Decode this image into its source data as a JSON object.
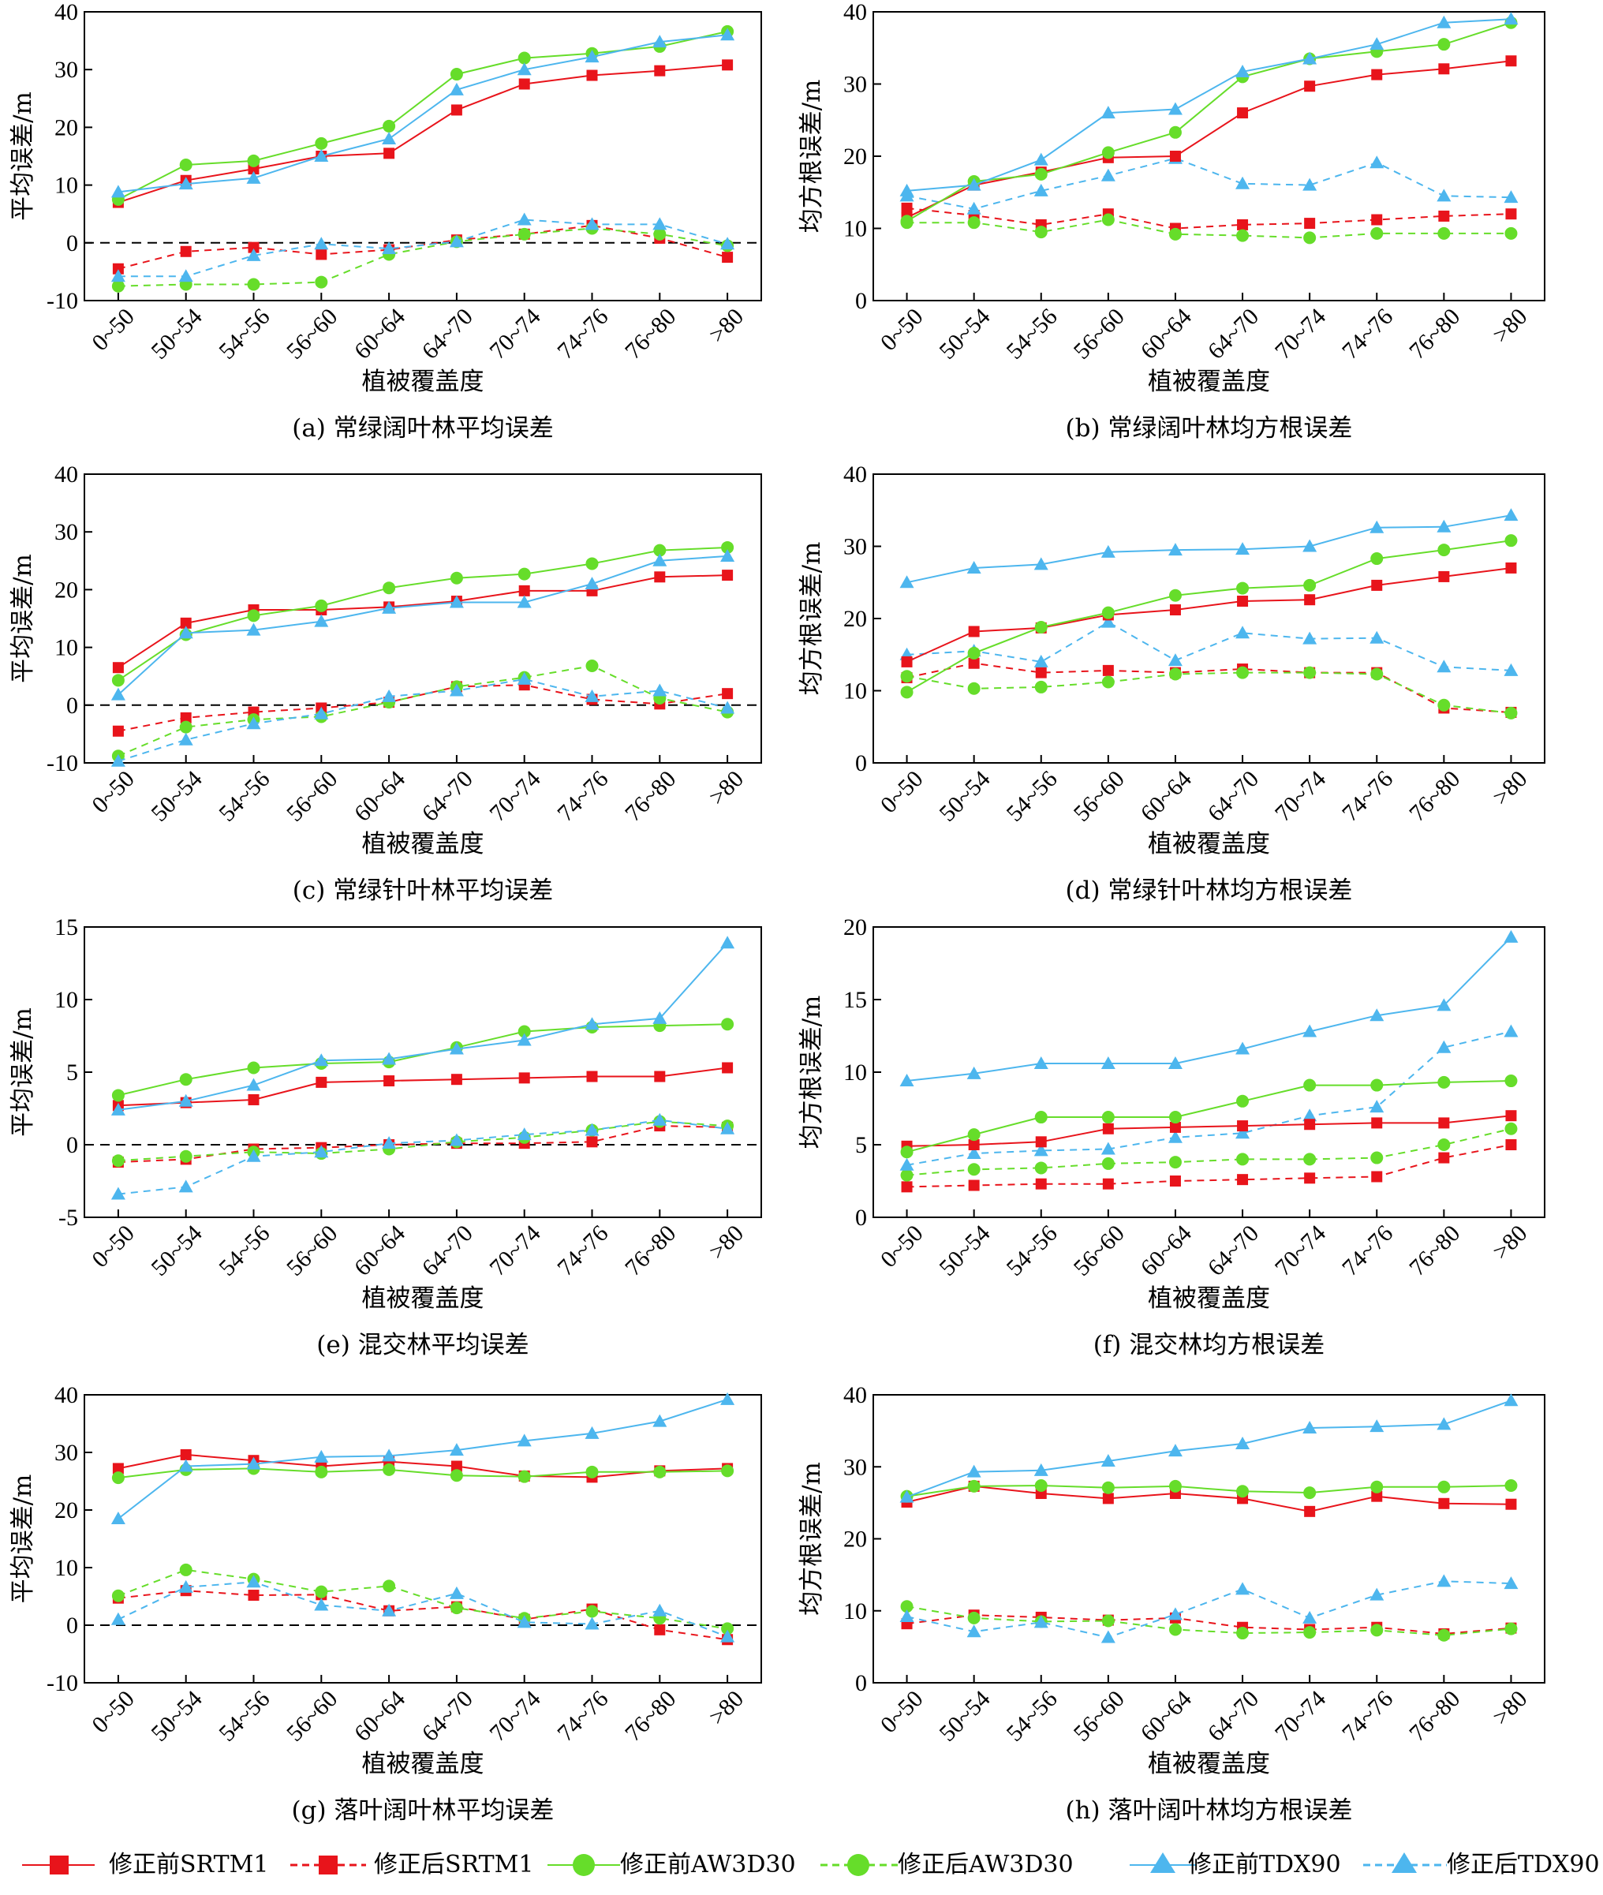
{
  "categories": [
    "0~50",
    "50~54",
    "54~56",
    "56~60",
    "60~64",
    "64~70",
    "70~74",
    "74~76",
    "76~80",
    ">80"
  ],
  "xlabel": "植被覆盖度",
  "series_styles": [
    {
      "key": "srtm_before",
      "name": "修正前SRTM1",
      "color": "#e8141b",
      "marker": "square",
      "dashed": false
    },
    {
      "key": "srtm_after",
      "name": "修正后SRTM1",
      "color": "#e8141b",
      "marker": "square",
      "dashed": true
    },
    {
      "key": "aw_before",
      "name": "修正前AW3D30",
      "color": "#66dd2a",
      "marker": "circle",
      "dashed": false
    },
    {
      "key": "aw_after",
      "name": "修正后AW3D30",
      "color": "#66dd2a",
      "marker": "circle",
      "dashed": true
    },
    {
      "key": "tdx_before",
      "name": "修正前TDX90",
      "color": "#4db6ee",
      "marker": "triangle",
      "dashed": false
    },
    {
      "key": "tdx_after",
      "name": "修正后TDX90",
      "color": "#4db6ee",
      "marker": "triangle",
      "dashed": true
    }
  ],
  "chart_data": [
    {
      "id": "a",
      "type": "line",
      "caption": "(a)  常绿阔叶林平均误差",
      "ylabel": "平均误差/m",
      "ylim": [
        -10,
        40
      ],
      "yticks": [
        -10,
        0,
        10,
        20,
        30,
        40
      ],
      "zero_line": true,
      "series": {
        "srtm_before": [
          7,
          10.8,
          12.8,
          15,
          15.5,
          23,
          27.5,
          29,
          29.8,
          30.8
        ],
        "srtm_after": [
          -4.5,
          -1.5,
          -0.8,
          -2,
          -1.2,
          0.5,
          1.5,
          3,
          0.8,
          -2.5
        ],
        "aw_before": [
          7.5,
          13.5,
          14.2,
          17.2,
          20.2,
          29.2,
          32,
          32.8,
          34,
          36.6
        ],
        "aw_after": [
          -7.5,
          -7.2,
          -7.2,
          -6.8,
          -2,
          0.2,
          1.5,
          2.5,
          1.5,
          -0.5
        ],
        "tdx_before": [
          8.8,
          10.2,
          11.2,
          15,
          18,
          26.5,
          30,
          32.2,
          34.8,
          36
        ],
        "tdx_after": [
          -5.8,
          -5.8,
          -2.2,
          -0.2,
          -1,
          0.2,
          4,
          3.2,
          3.2,
          -0.2
        ]
      }
    },
    {
      "id": "b",
      "type": "line",
      "caption": "(b)  常绿阔叶林均方根误差",
      "ylabel": "均方根误差/m",
      "ylim": [
        0,
        40
      ],
      "yticks": [
        0,
        10,
        20,
        30,
        40
      ],
      "zero_line": false,
      "series": {
        "srtm_before": [
          11.5,
          16,
          17.8,
          19.8,
          20,
          26,
          29.7,
          31.3,
          32.1,
          33.2
        ],
        "srtm_after": [
          12.8,
          11.8,
          10.5,
          12,
          10,
          10.5,
          10.7,
          11.2,
          11.7,
          12
        ],
        "aw_before": [
          11,
          16.5,
          17.5,
          20.5,
          23.3,
          31,
          33.5,
          34.5,
          35.5,
          38.5
        ],
        "aw_after": [
          10.8,
          10.8,
          9.5,
          11.2,
          9.2,
          9,
          8.7,
          9.3,
          9.3,
          9.3
        ],
        "tdx_before": [
          15.2,
          16,
          19.5,
          26,
          26.5,
          31.7,
          33.5,
          35.5,
          38.5,
          39
        ],
        "tdx_after": [
          14.5,
          12.7,
          15.2,
          17.3,
          19.7,
          16.2,
          16,
          19.1,
          14.5,
          14.3
        ]
      }
    },
    {
      "id": "c",
      "type": "line",
      "caption": "(c)  常绿针叶林平均误差",
      "ylabel": "平均误差/m",
      "ylim": [
        -10,
        40
      ],
      "yticks": [
        -10,
        0,
        10,
        20,
        30,
        40
      ],
      "zero_line": true,
      "series": {
        "srtm_before": [
          6.5,
          14.2,
          16.5,
          16.5,
          17,
          18,
          19.8,
          19.8,
          22.2,
          22.5
        ],
        "srtm_after": [
          -4.5,
          -2.2,
          -1.2,
          -0.5,
          0.5,
          3.2,
          3.5,
          1,
          0.2,
          2
        ],
        "aw_before": [
          4.3,
          12.2,
          15.5,
          17.2,
          20.3,
          22,
          22.7,
          24.5,
          26.8,
          27.3
        ],
        "aw_after": [
          -8.8,
          -3.8,
          -2.5,
          -2,
          0.5,
          3.2,
          4.8,
          6.8,
          1.2,
          -1.2
        ],
        "tdx_before": [
          1.8,
          12.5,
          13,
          14.5,
          16.8,
          17.8,
          17.8,
          21,
          25,
          25.8
        ],
        "tdx_after": [
          -9.7,
          -6,
          -3.2,
          -1.5,
          1.5,
          2.5,
          4.5,
          1.5,
          2.5,
          -0.5
        ]
      }
    },
    {
      "id": "d",
      "type": "line",
      "caption": "(d)  常绿针叶林均方根误差",
      "ylabel": "均方根误差/m",
      "ylim": [
        0,
        40
      ],
      "yticks": [
        0,
        10,
        20,
        30,
        40
      ],
      "zero_line": false,
      "series": {
        "srtm_before": [
          14,
          18.2,
          18.7,
          20.5,
          21.2,
          22.4,
          22.6,
          24.6,
          25.8,
          27
        ],
        "srtm_after": [
          11.8,
          13.8,
          12.5,
          12.8,
          12.5,
          13,
          12.5,
          12.5,
          7.6,
          7
        ],
        "aw_before": [
          9.8,
          15.2,
          18.8,
          20.8,
          23.2,
          24.2,
          24.6,
          28.3,
          29.5,
          30.8
        ],
        "aw_after": [
          12,
          10.3,
          10.5,
          11.2,
          12.3,
          12.5,
          12.5,
          12.3,
          8,
          6.9
        ],
        "tdx_before": [
          25,
          27,
          27.5,
          29.2,
          29.5,
          29.6,
          30,
          32.6,
          32.7,
          34.3
        ],
        "tdx_after": [
          15,
          15.5,
          14,
          19.5,
          14.2,
          18,
          17.2,
          17.3,
          13.3,
          12.8
        ]
      }
    },
    {
      "id": "e",
      "type": "line",
      "caption": "(e)  混交林平均误差",
      "ylabel": "平均误差/m",
      "ylim": [
        -5,
        15
      ],
      "yticks": [
        -5,
        0,
        5,
        10,
        15
      ],
      "zero_line": true,
      "series": {
        "srtm_before": [
          2.7,
          2.9,
          3.1,
          4.3,
          4.4,
          4.5,
          4.6,
          4.7,
          4.7,
          5.3
        ],
        "srtm_after": [
          -1.2,
          -1,
          -0.3,
          -0.2,
          0,
          0.1,
          0.1,
          0.2,
          1.3,
          1.2
        ],
        "aw_before": [
          3.4,
          4.5,
          5.3,
          5.6,
          5.7,
          6.7,
          7.8,
          8.1,
          8.2,
          8.3
        ],
        "aw_after": [
          -1.1,
          -0.8,
          -0.5,
          -0.6,
          -0.3,
          0.2,
          0.5,
          1,
          1.6,
          1.3
        ],
        "tdx_before": [
          2.4,
          3,
          4.1,
          5.8,
          5.9,
          6.6,
          7.2,
          8.3,
          8.7,
          13.9
        ],
        "tdx_after": [
          -3.4,
          -2.9,
          -0.8,
          -0.5,
          0.1,
          0.3,
          0.7,
          1,
          1.7,
          1.1
        ]
      }
    },
    {
      "id": "f",
      "type": "line",
      "caption": "(f)  混交林均方根误差",
      "ylabel": "均方根误差/m",
      "ylim": [
        0,
        20
      ],
      "yticks": [
        0,
        5,
        10,
        15,
        20
      ],
      "zero_line": false,
      "series": {
        "srtm_before": [
          4.9,
          5,
          5.2,
          6.1,
          6.2,
          6.3,
          6.4,
          6.5,
          6.5,
          7
        ],
        "srtm_after": [
          2.1,
          2.2,
          2.3,
          2.3,
          2.5,
          2.6,
          2.7,
          2.8,
          4.1,
          5
        ],
        "aw_before": [
          4.5,
          5.7,
          6.9,
          6.9,
          6.9,
          8,
          9.1,
          9.1,
          9.3,
          9.4
        ],
        "aw_after": [
          2.9,
          3.3,
          3.4,
          3.7,
          3.8,
          4,
          4,
          4.1,
          5,
          6.1
        ],
        "tdx_before": [
          9.4,
          9.9,
          10.6,
          10.6,
          10.6,
          11.6,
          12.8,
          13.9,
          14.6,
          19.3
        ],
        "tdx_after": [
          3.6,
          4.4,
          4.6,
          4.7,
          5.5,
          5.8,
          7,
          7.6,
          11.7,
          12.8
        ]
      }
    },
    {
      "id": "g",
      "type": "line",
      "caption": "(g)  落叶阔叶林平均误差",
      "ylabel": "平均误差/m",
      "ylim": [
        -10,
        40
      ],
      "yticks": [
        -10,
        0,
        10,
        20,
        30,
        40
      ],
      "zero_line": true,
      "series": {
        "srtm_before": [
          27.2,
          29.6,
          28.6,
          27.6,
          28.4,
          27.6,
          25.9,
          25.7,
          26.8,
          27.2
        ],
        "srtm_after": [
          4.7,
          6,
          5.2,
          5.3,
          2.5,
          3.2,
          1,
          2.8,
          -0.8,
          -2.5
        ],
        "aw_before": [
          25.6,
          27,
          27.2,
          26.6,
          27,
          26,
          25.8,
          26.6,
          26.6,
          26.8
        ],
        "aw_after": [
          5.1,
          9.6,
          8,
          5.8,
          6.8,
          3,
          1.2,
          2.4,
          1.2,
          -0.6
        ],
        "tdx_before": [
          18.5,
          27.6,
          28,
          29.2,
          29.4,
          30.4,
          32,
          33.3,
          35.4,
          39.2
        ],
        "tdx_after": [
          1,
          6.6,
          7.5,
          3.5,
          2.5,
          5.5,
          0.5,
          0.2,
          2.5,
          -2
        ]
      }
    },
    {
      "id": "h",
      "type": "line",
      "caption": "(h)  落叶阔叶林均方根误差",
      "ylabel": "均方根误差/m",
      "ylim": [
        0,
        40
      ],
      "yticks": [
        0,
        10,
        20,
        30,
        40
      ],
      "zero_line": false,
      "series": {
        "srtm_before": [
          25.1,
          27.3,
          26.3,
          25.6,
          26.3,
          25.6,
          23.8,
          25.9,
          24.9,
          24.8
        ],
        "srtm_after": [
          8.2,
          9.4,
          9.1,
          8.7,
          9,
          7.7,
          7.4,
          7.7,
          6.8,
          7.6
        ],
        "aw_before": [
          25.9,
          27.3,
          27.4,
          27.1,
          27.3,
          26.6,
          26.4,
          27.2,
          27.2,
          27.4
        ],
        "aw_after": [
          10.6,
          9,
          8.5,
          8.6,
          7.4,
          6.9,
          7,
          7.3,
          6.6,
          7.5
        ],
        "tdx_before": [
          25.8,
          29.3,
          29.5,
          30.8,
          32.2,
          33.2,
          35.4,
          35.6,
          35.9,
          39.2
        ],
        "tdx_after": [
          9.2,
          7.1,
          8.4,
          6.3,
          9.5,
          13,
          9,
          12.2,
          14.1,
          13.8
        ]
      }
    }
  ]
}
